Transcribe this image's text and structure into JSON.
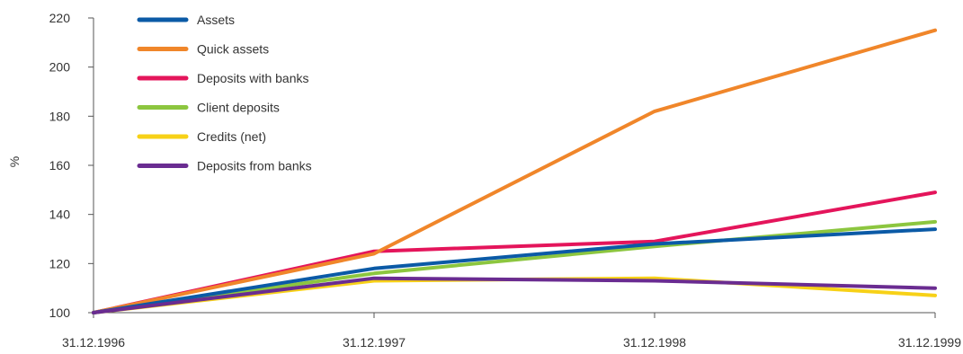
{
  "chart_data": {
    "type": "line",
    "title": "",
    "xlabel": "",
    "ylabel": "%",
    "categories": [
      "31.12.1996",
      "31.12.1997",
      "31.12.1998",
      "31.12.1999"
    ],
    "ylim": [
      100,
      220
    ],
    "yticks": [
      100,
      120,
      140,
      160,
      180,
      200,
      220
    ],
    "grid": false,
    "legend_position": "top-left",
    "series": [
      {
        "name": "Assets",
        "color": "#0b5aa6",
        "values": [
          100,
          118,
          128,
          134
        ]
      },
      {
        "name": "Quick assets",
        "color": "#f0862a",
        "values": [
          100,
          124,
          182,
          215
        ]
      },
      {
        "name": "Deposits with banks",
        "color": "#e4155b",
        "values": [
          100,
          125,
          129,
          149
        ]
      },
      {
        "name": "Client deposits",
        "color": "#8cc63f",
        "values": [
          100,
          116,
          127,
          137
        ]
      },
      {
        "name": "Credits (net)",
        "color": "#f7d117",
        "values": [
          100,
          113,
          114,
          107
        ]
      },
      {
        "name": "Deposits from banks",
        "color": "#6a2c91",
        "values": [
          100,
          114,
          113,
          110
        ]
      }
    ]
  }
}
